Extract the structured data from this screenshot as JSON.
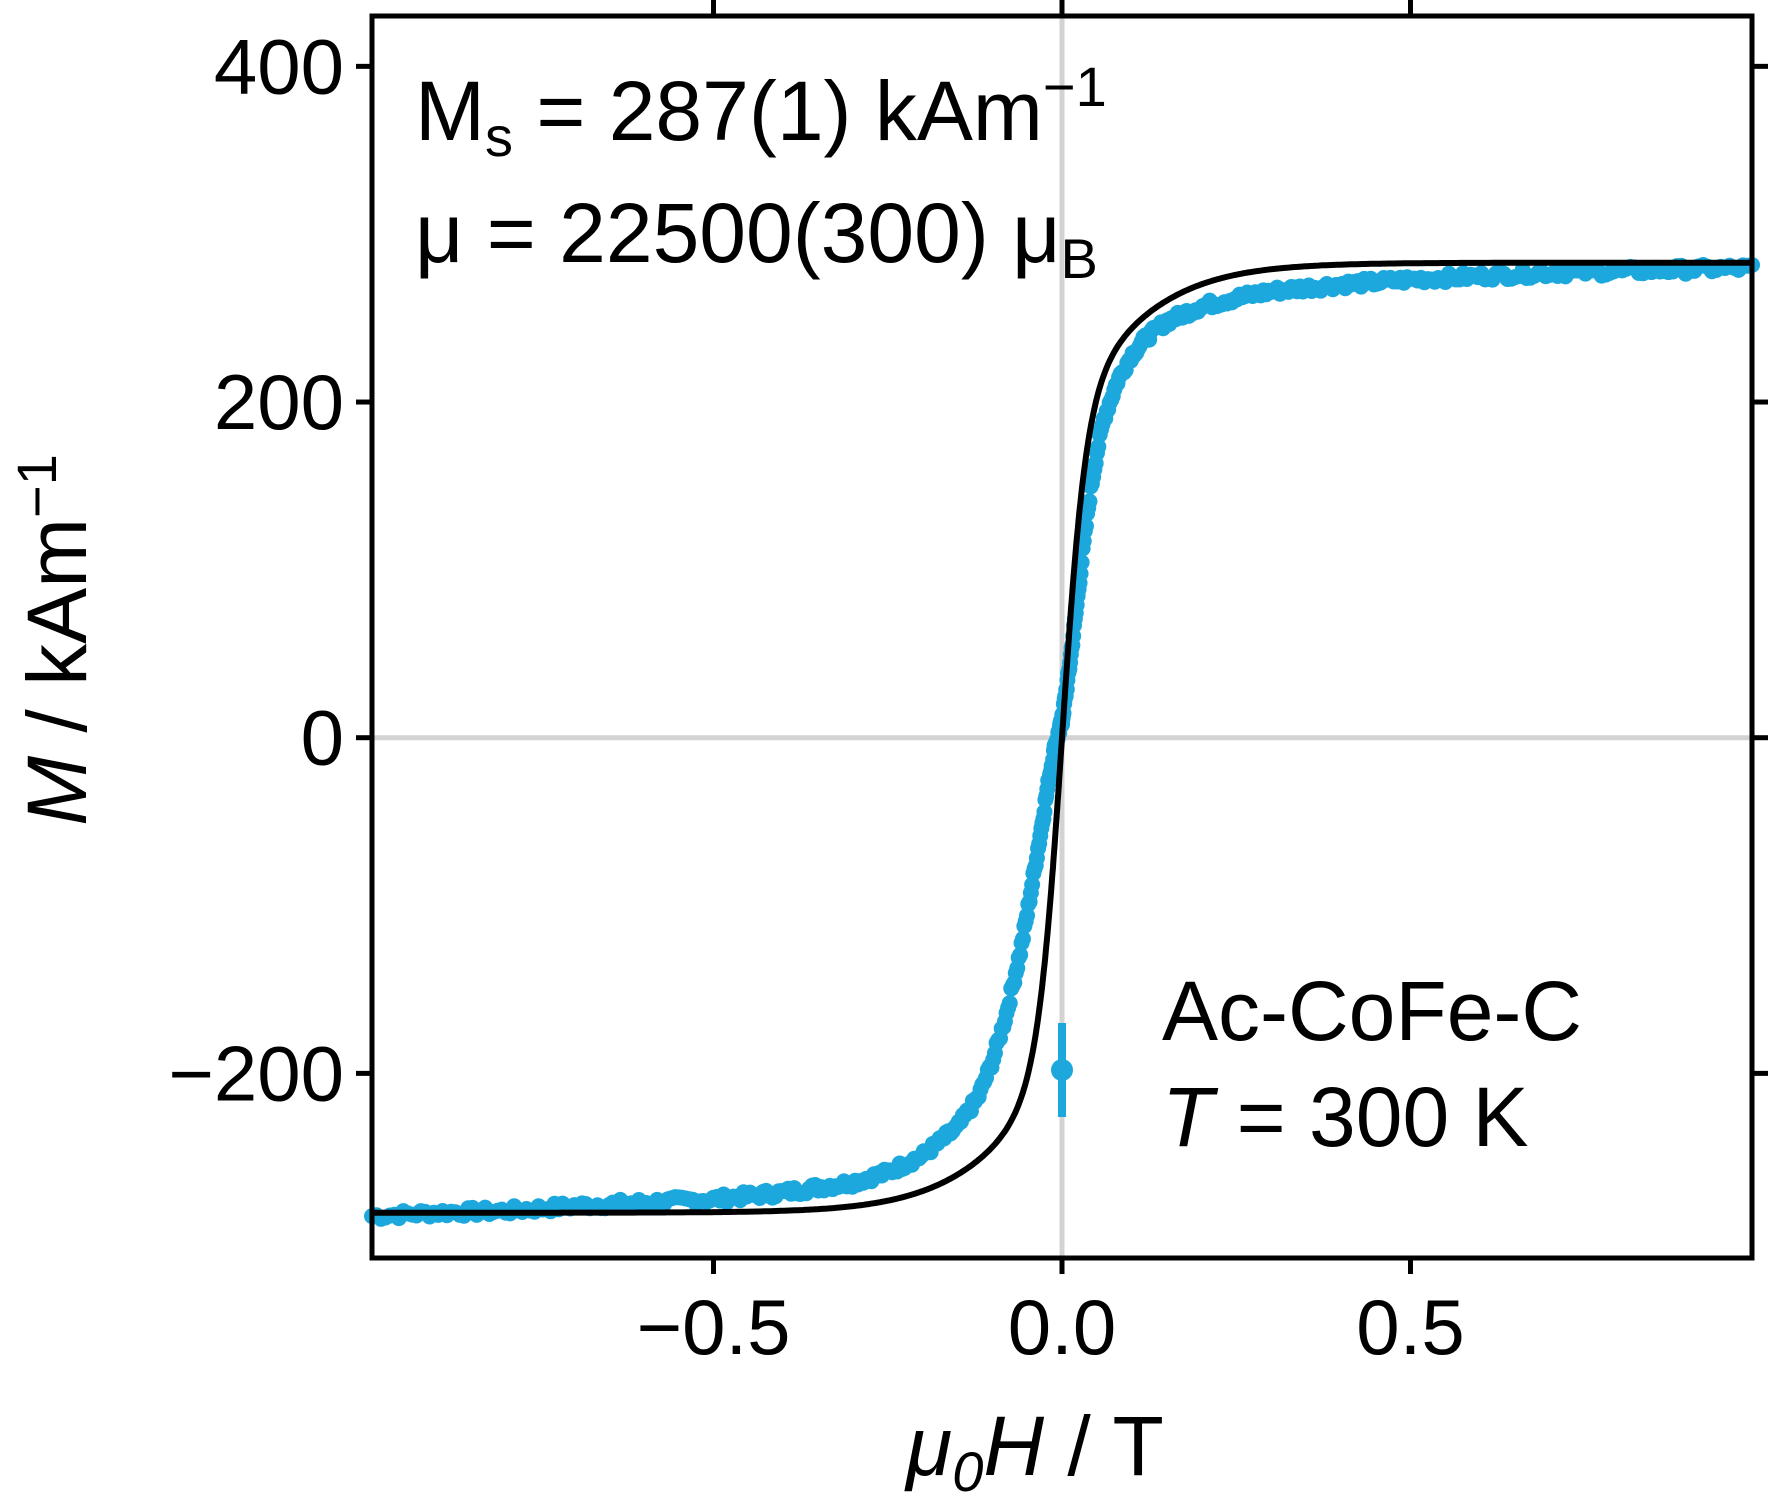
{
  "chart_data": {
    "type": "scatter",
    "title": "",
    "xlabel": {
      "symbol": "μ",
      "subscript": "0",
      "variable": "H",
      "sep": " / ",
      "unit": "T"
    },
    "ylabel": {
      "variable": "M",
      "sep": " / ",
      "unit": "kAm",
      "unit_sup": "−1"
    },
    "xlim": [
      -0.99,
      0.99
    ],
    "ylim": [
      -310,
      430
    ],
    "xticks": [
      {
        "value": -0.5,
        "label": "−0.5"
      },
      {
        "value": 0.0,
        "label": "0.0"
      },
      {
        "value": 0.5,
        "label": "0.5"
      }
    ],
    "yticks": [
      {
        "value": -200,
        "label": "−200"
      },
      {
        "value": 0,
        "label": "0"
      },
      {
        "value": 200,
        "label": "200"
      },
      {
        "value": 400,
        "label": "400"
      }
    ],
    "reference_lines": {
      "x": 0,
      "y": 0,
      "color": "#d3d3d3"
    },
    "grid": false,
    "series": [
      {
        "kind": "measured",
        "color": "#1ca8dd",
        "x": [
          -0.99,
          -0.9,
          -0.8,
          -0.7,
          -0.6,
          -0.5,
          -0.4,
          -0.3,
          -0.25,
          -0.2,
          -0.15,
          -0.12,
          -0.1,
          -0.08,
          -0.06,
          -0.05,
          -0.04,
          -0.03,
          -0.02,
          -0.01,
          0.0,
          0.01,
          0.02,
          0.03,
          0.04,
          0.05,
          0.06,
          0.08,
          0.1,
          0.12,
          0.15,
          0.2,
          0.25,
          0.3,
          0.4,
          0.5,
          0.6,
          0.7,
          0.8,
          0.9,
          0.99
        ],
        "y": [
          -285,
          -283,
          -282,
          -279,
          -277,
          -275,
          -271,
          -265,
          -259,
          -249,
          -232,
          -214,
          -193,
          -165,
          -128,
          -105,
          -80,
          -55,
          -28,
          -5,
          10,
          40,
          75,
          112,
          145,
          170,
          190,
          213,
          228,
          238,
          248,
          257,
          262,
          266,
          270,
          273,
          275,
          277,
          278,
          279,
          280
        ]
      },
      {
        "kind": "fit",
        "color": "#000000",
        "Ms": 283,
        "Hw": 0.035,
        "Hs": 0.16,
        "frac": 0.7
      }
    ],
    "error_bar": {
      "x": 0.0,
      "y": -198,
      "ylow": -170,
      "yhigh": -226,
      "color": "#1ca8dd"
    },
    "annotations": {
      "ms": {
        "prefix": "M",
        "sub": "s",
        "text": " = 287(1) kAm",
        "sup": "−1"
      },
      "mu": {
        "text": "μ = 22500(300) μ",
        "sub": "B"
      },
      "sample": "Ac-CoFe-C",
      "temp": {
        "var": "T",
        "text": " = 300 K"
      }
    }
  }
}
